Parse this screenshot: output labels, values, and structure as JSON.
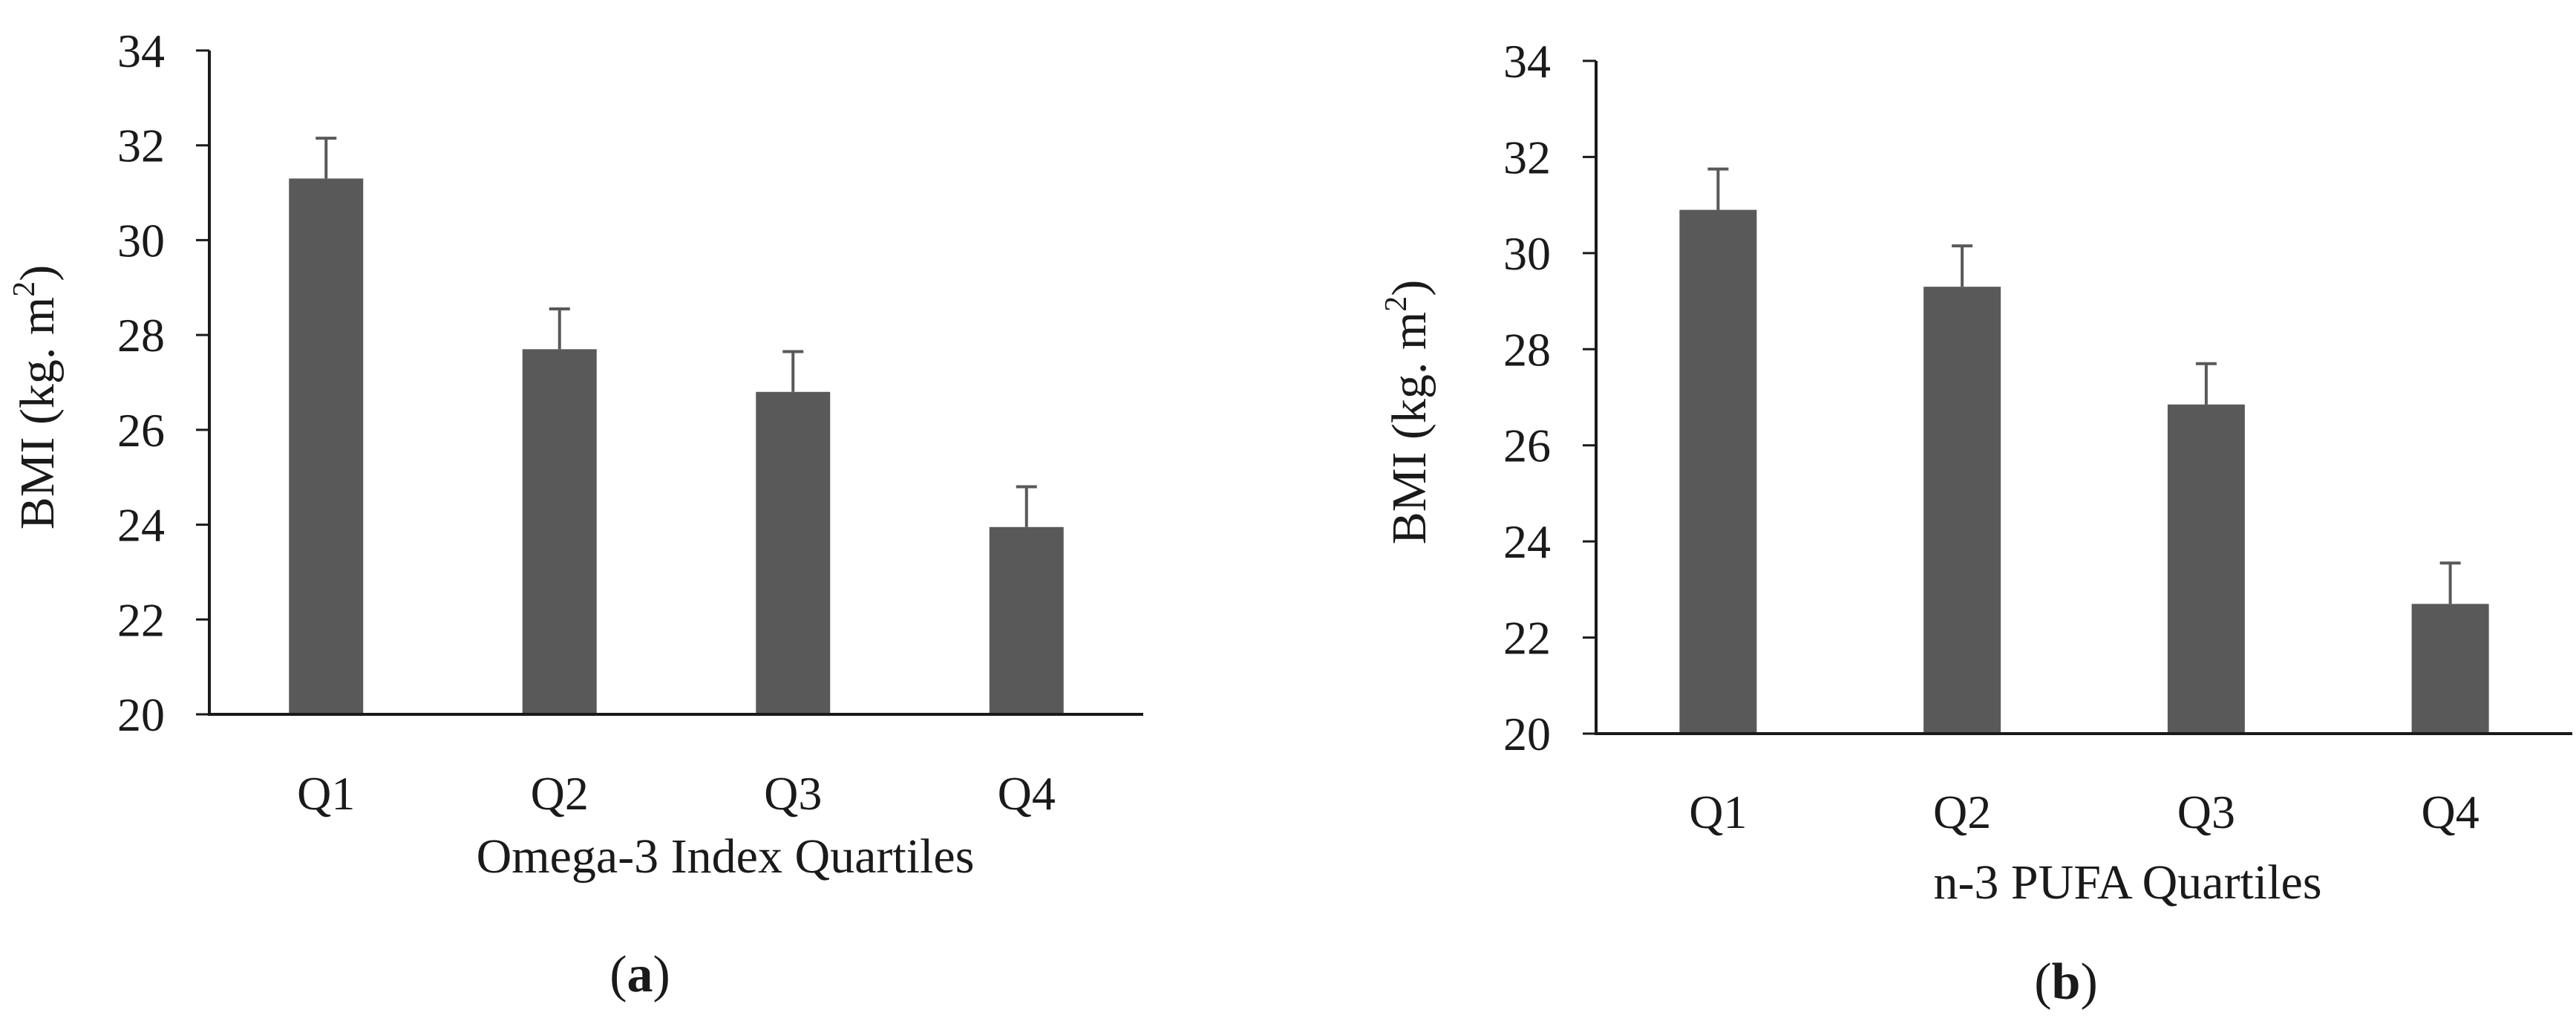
{
  "chart_data": [
    {
      "type": "bar",
      "panel_label": "a",
      "categories": [
        "Q1",
        "Q2",
        "Q3",
        "Q4"
      ],
      "values": [
        31.3,
        27.7,
        26.8,
        23.95
      ],
      "error_upper": [
        0.85,
        0.85,
        0.85,
        0.85
      ],
      "xlabel": "Omega-3 Index Quartiles",
      "ylabel": "BMI (kg. m",
      "ylabel_sup": "2",
      "ylabel_close": ")",
      "ylim": [
        20,
        34
      ],
      "yticks": [
        "20",
        "22",
        "24",
        "26",
        "28",
        "30",
        "32",
        "34"
      ],
      "grid": false,
      "bar_color": "#595959"
    },
    {
      "type": "bar",
      "panel_label": "b",
      "categories": [
        "Q1",
        "Q2",
        "Q3",
        "Q4"
      ],
      "values": [
        30.9,
        29.3,
        26.85,
        22.7
      ],
      "error_upper": [
        0.85,
        0.85,
        0.85,
        0.85
      ],
      "xlabel": "n-3 PUFA Quartiles",
      "ylabel": "BMI (kg. m",
      "ylabel_sup": "2",
      "ylabel_close": ")",
      "ylim": [
        20,
        34
      ],
      "yticks": [
        "20",
        "22",
        "24",
        "26",
        "28",
        "30",
        "32",
        "34"
      ],
      "grid": false,
      "bar_color": "#595959"
    }
  ]
}
